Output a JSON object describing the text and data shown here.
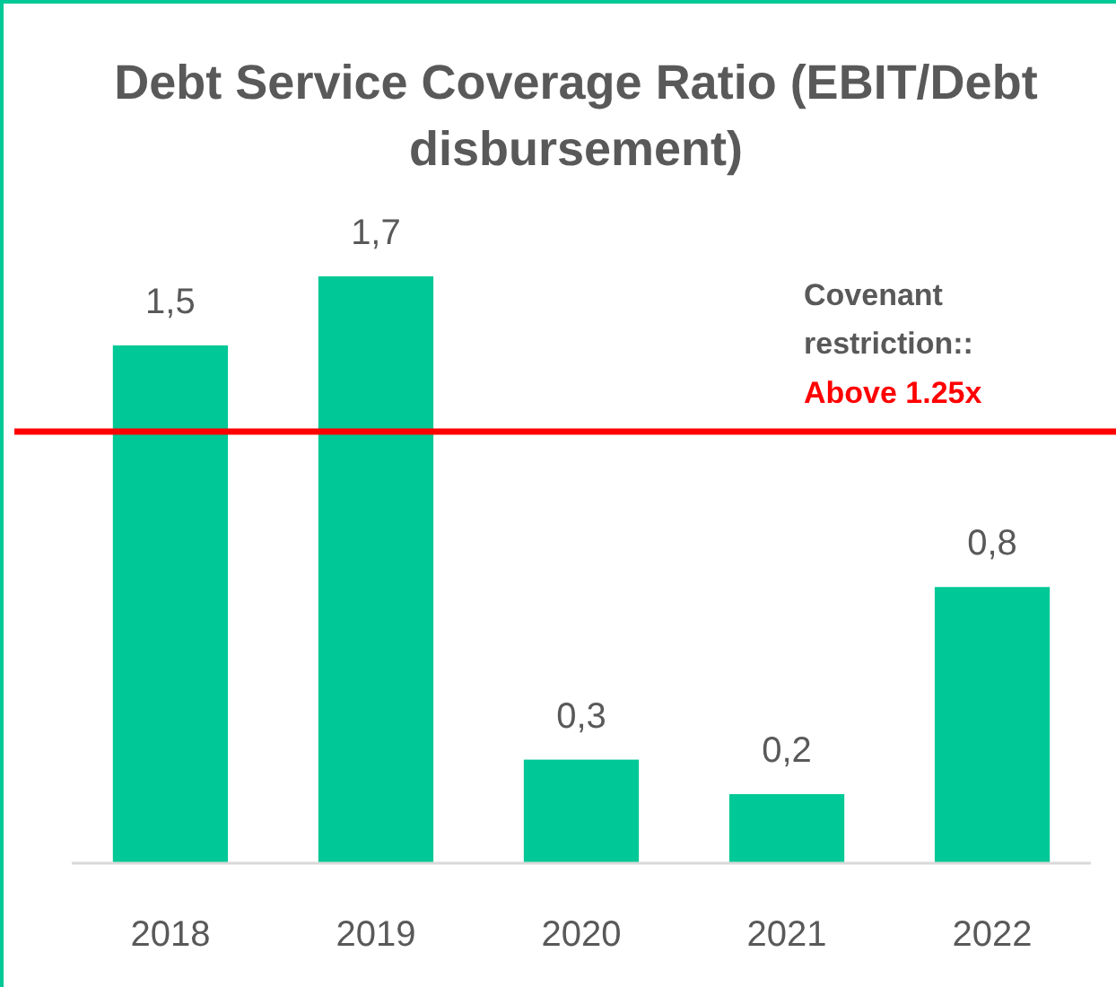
{
  "chart_data": {
    "type": "bar",
    "title": "Debt Service Coverage Ratio (EBIT/Debt disbursement)",
    "categories": [
      "2018",
      "2019",
      "2020",
      "2021",
      "2022"
    ],
    "values": [
      1.5,
      1.7,
      0.3,
      0.2,
      0.8
    ],
    "value_labels": [
      "1,5",
      "1,7",
      "0,3",
      "0,2",
      "0,8"
    ],
    "color": "#00c896",
    "ref_lines": [
      {
        "axis": "y",
        "value": 1.25,
        "label": "Above 1.25x",
        "color": "#ff0000"
      }
    ],
    "annotations": [
      "Covenant restriction::"
    ],
    "grid": false
  }
}
